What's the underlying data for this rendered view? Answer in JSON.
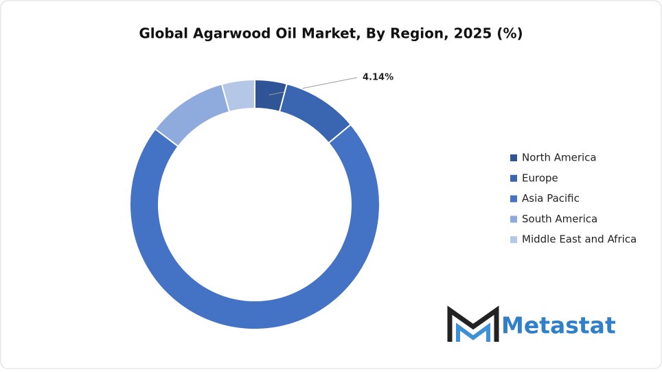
{
  "chart_data": {
    "type": "donut",
    "title": "Global Agarwood Oil Market, By Region, 2025 (%)",
    "categories": [
      "North America",
      "Europe",
      "Asia Pacific",
      "South America",
      "Middle East and Africa"
    ],
    "values": [
      4.14,
      9.8,
      71.4,
      10.4,
      4.26
    ],
    "value_labels": [
      "4.14%",
      null,
      null,
      null,
      null
    ],
    "colors": [
      "#2f5597",
      "#3a65b0",
      "#4472c4",
      "#8faadc",
      "#b4c7e7"
    ],
    "legend": "right"
  },
  "logo": "Metastat"
}
